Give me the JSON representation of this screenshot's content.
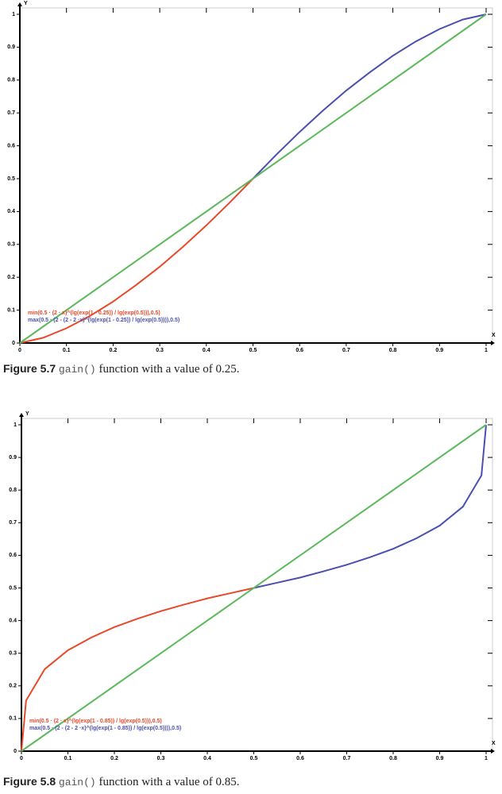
{
  "chart_data": [
    {
      "type": "line",
      "figure_label": "Figure 5.7",
      "caption_code": "gain()",
      "caption_text": "function with a value of 0.25.",
      "x_label": "X",
      "y_label": "Y",
      "xlim": [
        0,
        1
      ],
      "ylim": [
        0,
        1
      ],
      "xticks": [
        0,
        0.1,
        0.2,
        0.3,
        0.4,
        0.5,
        0.6,
        0.7,
        0.8,
        0.9,
        1
      ],
      "yticks": [
        0,
        0.1,
        0.2,
        0.3,
        0.4,
        0.5,
        0.6,
        0.7,
        0.8,
        0.9,
        1
      ],
      "series": [
        {
          "name": "min(0.5 · (2 · x)^(lg(exp(1 - 0.25)) / lg(exp(0.5))),0.5)",
          "color": "#e8492a",
          "x": [
            0,
            0.05,
            0.1,
            0.15,
            0.2,
            0.25,
            0.3,
            0.35,
            0.4,
            0.45,
            0.5
          ],
          "values": [
            0,
            0.016,
            0.045,
            0.082,
            0.126,
            0.177,
            0.232,
            0.293,
            0.358,
            0.427,
            0.5
          ]
        },
        {
          "name": "max(0.5 · (2 - (2 - 2 ·x)^(lg(exp(1 - 0.25)) / lg(exp(0.5)))),0.5)",
          "color": "#4a4fb0",
          "x": [
            0.5,
            0.55,
            0.6,
            0.65,
            0.7,
            0.75,
            0.8,
            0.85,
            0.9,
            0.95,
            1
          ],
          "values": [
            0.5,
            0.573,
            0.642,
            0.707,
            0.768,
            0.823,
            0.874,
            0.918,
            0.955,
            0.984,
            1
          ]
        },
        {
          "color": "#5cb85c",
          "x": [
            0,
            1
          ],
          "values": [
            0,
            1
          ]
        }
      ]
    },
    {
      "type": "line",
      "figure_label": "Figure 5.8",
      "caption_code": "gain()",
      "caption_text": "function with a value of 0.85.",
      "x_label": "X",
      "y_label": "Y",
      "xlim": [
        0,
        1
      ],
      "ylim": [
        0,
        1
      ],
      "xticks": [
        0,
        0.1,
        0.2,
        0.3,
        0.4,
        0.5,
        0.6,
        0.7,
        0.8,
        0.9,
        1
      ],
      "yticks": [
        0,
        0.1,
        0.2,
        0.3,
        0.4,
        0.5,
        0.6,
        0.7,
        0.8,
        0.9,
        1
      ],
      "series": [
        {
          "name": "min(0.5 · (2 · x)^(lg(exp(1 - 0.85)) / lg(exp(0.5))),0.5)",
          "color": "#e8492a",
          "x": [
            0,
            0.01,
            0.05,
            0.1,
            0.15,
            0.2,
            0.25,
            0.3,
            0.35,
            0.4,
            0.45,
            0.5
          ],
          "values": [
            0,
            0.155,
            0.251,
            0.309,
            0.348,
            0.38,
            0.406,
            0.429,
            0.449,
            0.468,
            0.484,
            0.5
          ]
        },
        {
          "name": "max(0.5 · (2 - (2 - 2 ·x)^(lg(exp(1 - 0.85)) / lg(exp(0.5)))),0.5)",
          "color": "#4a4fb0",
          "x": [
            0.5,
            0.55,
            0.6,
            0.65,
            0.7,
            0.75,
            0.8,
            0.85,
            0.9,
            0.95,
            0.99,
            1
          ],
          "values": [
            0.5,
            0.516,
            0.532,
            0.551,
            0.571,
            0.594,
            0.62,
            0.652,
            0.691,
            0.749,
            0.845,
            1
          ]
        },
        {
          "color": "#5cb85c",
          "x": [
            0,
            1
          ],
          "values": [
            0,
            1
          ]
        }
      ]
    }
  ]
}
